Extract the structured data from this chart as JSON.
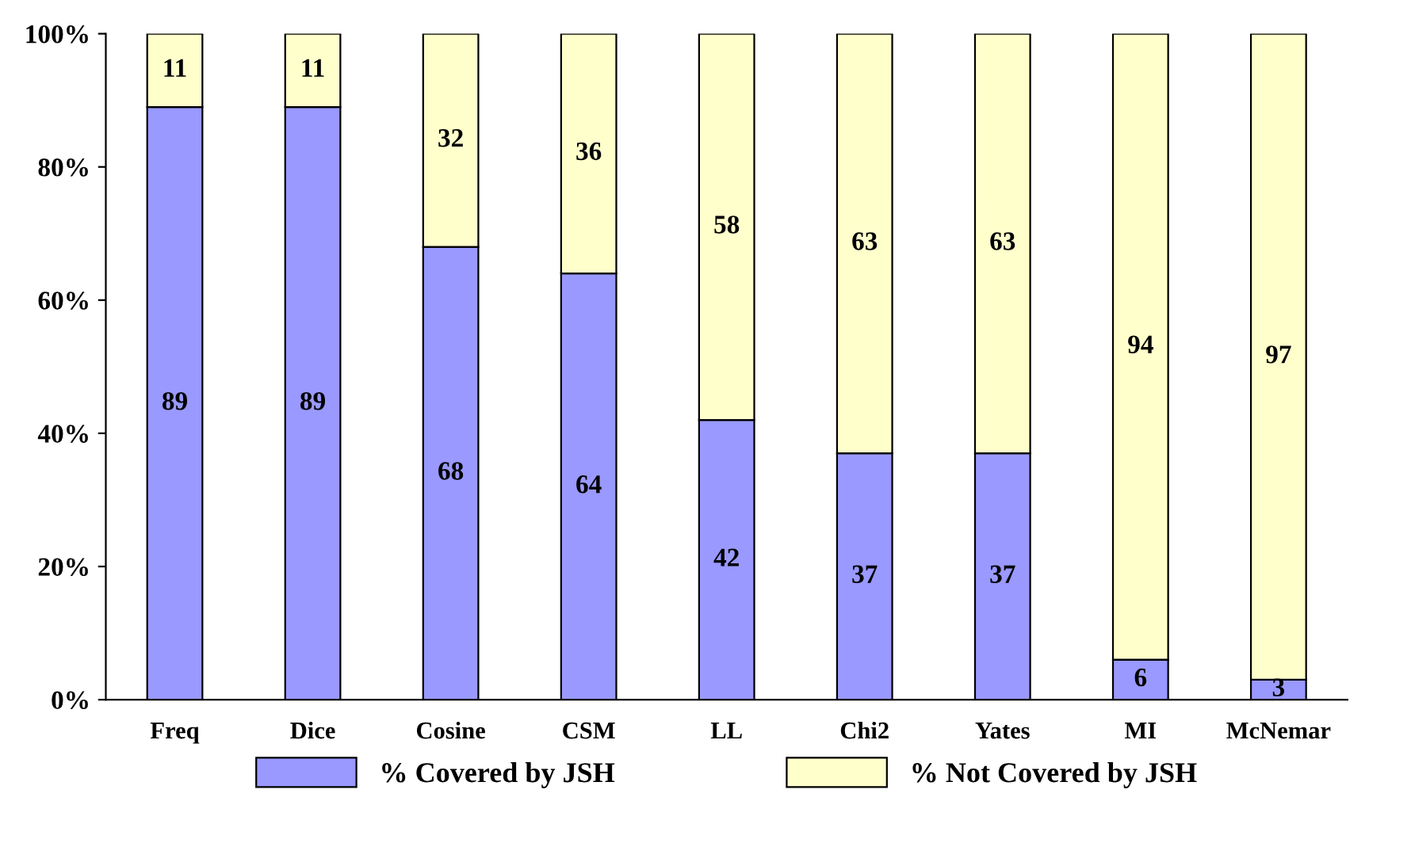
{
  "chart_data": {
    "type": "bar",
    "stacked": true,
    "categories": [
      "Freq",
      "Dice",
      "Cosine",
      "CSM",
      "LL",
      "Chi2",
      "Yates",
      "MI",
      "McNemar"
    ],
    "series": [
      {
        "name": "% Covered by JSH",
        "color": "#9999ff",
        "values": [
          89,
          89,
          68,
          64,
          42,
          37,
          37,
          6,
          3
        ]
      },
      {
        "name": "% Not Covered by JSH",
        "color": "#ffffcc",
        "values": [
          11,
          11,
          32,
          36,
          58,
          63,
          63,
          94,
          97
        ]
      }
    ],
    "ylim": [
      0,
      100
    ],
    "yticks": [
      {
        "value": 0,
        "label": "0%"
      },
      {
        "value": 20,
        "label": "20%"
      },
      {
        "value": 40,
        "label": "40%"
      },
      {
        "value": 60,
        "label": "60%"
      },
      {
        "value": 80,
        "label": "80%"
      },
      {
        "value": 100,
        "label": "100%"
      }
    ],
    "data_labels": true,
    "grid": false,
    "legend": "bottom"
  }
}
